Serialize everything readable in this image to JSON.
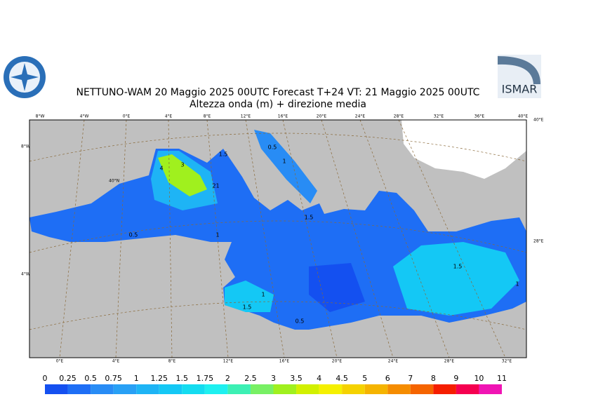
{
  "header": {
    "title": "NETTUNO-WAM  20   Maggio  2025 00UTC Forecast T+24 VT: 21   Maggio  2025 00UTC",
    "subtitle": "Altezza onda (m) + direzione media",
    "logo_right": "ISMAR"
  },
  "map": {
    "top_labels": [
      "8°W",
      "4°W",
      "0°E",
      "4°E",
      "8°E",
      "12°E",
      "16°E",
      "20°E",
      "24°E",
      "28°E",
      "32°E",
      "36°E",
      "40°E"
    ],
    "bottom_labels": [
      "0°E",
      "4°E",
      "8°E",
      "12°E",
      "16°E",
      "20°E",
      "24°E",
      "28°E",
      "32°E"
    ],
    "left_labels": [
      "8°W",
      "40°N",
      "4°W"
    ],
    "right_labels": [
      "40°E",
      "28°E"
    ],
    "contour_labels": [
      "1.5",
      "1",
      "4",
      "3",
      "2",
      "0.5",
      "1",
      "1.5",
      "1",
      "0.5",
      "1.5",
      "1",
      "1.5",
      "1",
      "0.5"
    ]
  },
  "legend": {
    "levels": [
      0,
      0.25,
      0.5,
      0.75,
      1,
      1.25,
      1.5,
      1.75,
      2,
      2.5,
      3,
      3.5,
      4,
      4.5,
      5,
      6,
      7,
      8,
      9,
      10,
      11
    ],
    "colors": [
      "#1450f0",
      "#1e6ef5",
      "#288cf5",
      "#28a0f5",
      "#1eb4f5",
      "#14c8f5",
      "#14dcf0",
      "#1ef0f0",
      "#3cf0b4",
      "#78f064",
      "#a0f01e",
      "#d2f000",
      "#f5f000",
      "#f5d200",
      "#f5b400",
      "#f58c00",
      "#f56400",
      "#f51e00",
      "#f50050",
      "#f014b4"
    ]
  }
}
